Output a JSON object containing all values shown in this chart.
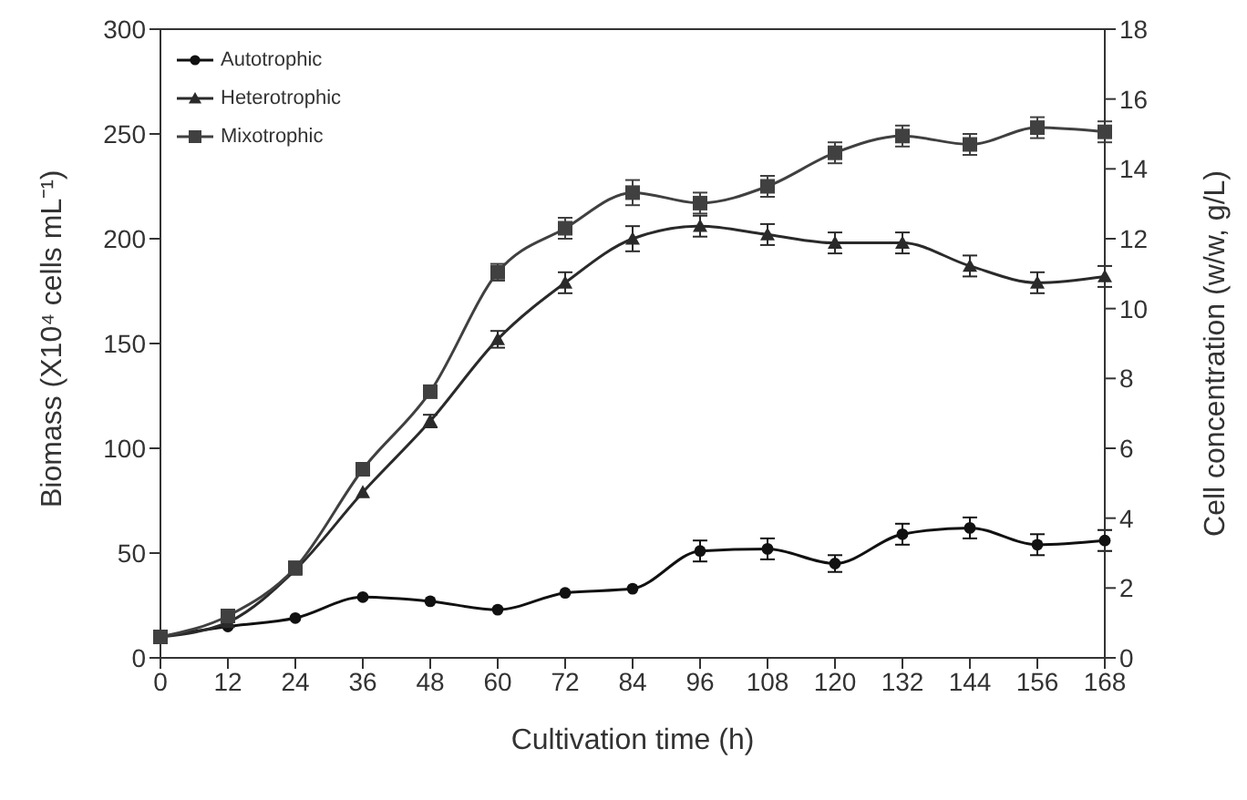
{
  "chart_data": {
    "type": "line",
    "xlabel": "Cultivation time (h)",
    "ylabel": "Biomass (X10⁴ cells mL⁻¹)",
    "y2label": "Cell concentration (w/w, g/L)",
    "categories": [
      "0",
      "12",
      "24",
      "36",
      "48",
      "60",
      "72",
      "84",
      "96",
      "108",
      "120",
      "132",
      "144",
      "156",
      "168"
    ],
    "series": [
      {
        "name": "Autotrophic",
        "color": "#111111",
        "marker": "circle",
        "values": [
          10,
          15,
          19,
          29,
          27,
          23,
          31,
          33,
          51,
          52,
          45,
          59,
          62,
          54,
          56
        ],
        "errors": [
          null,
          null,
          null,
          null,
          null,
          null,
          null,
          null,
          5,
          5,
          4,
          5,
          5,
          5,
          5
        ]
      },
      {
        "name": "Heterotrophic",
        "color": "#2a2a2a",
        "marker": "triangle",
        "values": [
          10,
          17,
          42,
          79,
          113,
          152,
          179,
          200,
          206,
          202,
          198,
          198,
          187,
          179,
          182
        ],
        "errors": [
          null,
          null,
          null,
          null,
          3,
          4,
          5,
          6,
          5,
          5,
          5,
          5,
          5,
          5,
          5
        ]
      },
      {
        "name": "Mixotrophic",
        "color": "#404040",
        "marker": "square",
        "values": [
          10,
          20,
          43,
          90,
          127,
          184,
          205,
          222,
          217,
          225,
          241,
          249,
          245,
          253,
          251
        ],
        "errors": [
          null,
          null,
          null,
          null,
          null,
          4,
          5,
          6,
          5,
          5,
          5,
          5,
          5,
          5,
          5
        ]
      }
    ],
    "ylim": [
      0,
      300
    ],
    "yticks": [
      0,
      50,
      100,
      150,
      200,
      250,
      300
    ],
    "y2lim": [
      0,
      18
    ],
    "y2ticks": [
      0,
      2,
      4,
      6,
      8,
      10,
      12,
      14,
      16,
      18
    ],
    "legend": "top left",
    "grid": false,
    "line_style": "solid"
  }
}
